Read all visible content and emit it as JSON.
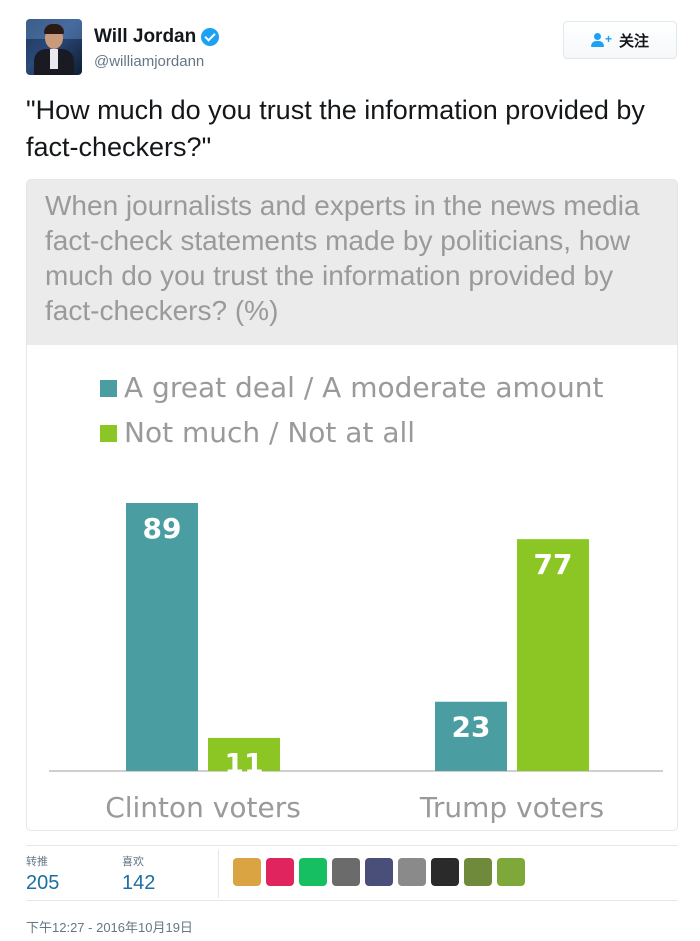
{
  "user": {
    "name": "Will Jordan",
    "handle": "@williamjordann",
    "follow_label": "关注"
  },
  "tweet": {
    "text": "\"How much do you trust the information provided by fact-checkers?\""
  },
  "chart_data": {
    "type": "bar",
    "title": "When journalists and experts in the news media fact-check statements made by politicians, how much do you trust the information provided by fact-checkers? (%)",
    "categories": [
      "Clinton voters",
      "Trump voters"
    ],
    "series": [
      {
        "name": "A great deal / A moderate amount",
        "values": [
          89,
          23
        ],
        "color": "#4a9ea1"
      },
      {
        "name": "Not much / Not at all",
        "values": [
          11,
          77
        ],
        "color": "#8cc625"
      }
    ],
    "ylim": [
      0,
      89
    ],
    "legend": "top-left",
    "grid": false
  },
  "stats": {
    "retweets_label": "转推",
    "retweets": "205",
    "likes_label": "喜欢",
    "likes": "142"
  },
  "liker_colors": [
    "#d9a441",
    "#e0245e",
    "#17bf63",
    "#6b6b6b",
    "#4a4f7a",
    "#8a8a8a",
    "#2a2a2a",
    "#6e8a3a",
    "#7fa83a"
  ],
  "timestamp": "下午12:27 - 2016年10月19日"
}
